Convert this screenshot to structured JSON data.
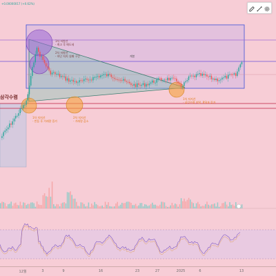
{
  "ticker_text": "+0.00000017 (+0.62%)",
  "title_label": "삼각수렴",
  "box_label": "계봉",
  "annotations": {
    "peak1": [
      "1차 저항선",
      "- 최고 후 매도세"
    ],
    "peak2": [
      "2차 저항선",
      "- 하단 지지 실패 구간"
    ],
    "support1": [
      "1차 지지선",
      "- 반등 후 거래량 증가"
    ],
    "support2": [
      "2차 지지선",
      "- 거래량 감소"
    ],
    "support3": [
      "1차 지지선",
      "- 삼각수렴 이탈, RSI과 증가"
    ]
  },
  "x_axis_labels": [
    "12월",
    "3",
    "9",
    "16",
    "23",
    "27",
    "2025",
    "6",
    "13"
  ],
  "colors": {
    "background": "#f7cdd6",
    "candle_up": "#26a69a",
    "candle_down": "#ef5350",
    "triangle": "#6ec3b0",
    "resistance_line": "#c02040",
    "box_border": "#3a4fd8",
    "circle_purple": "#9e6ad6",
    "circle_orange": "#f5a23a",
    "rsi_line": "#7e57c2"
  },
  "icons": {
    "draw": "pencil-icon",
    "line": "trendline-icon",
    "settings": "settings-icon"
  }
}
